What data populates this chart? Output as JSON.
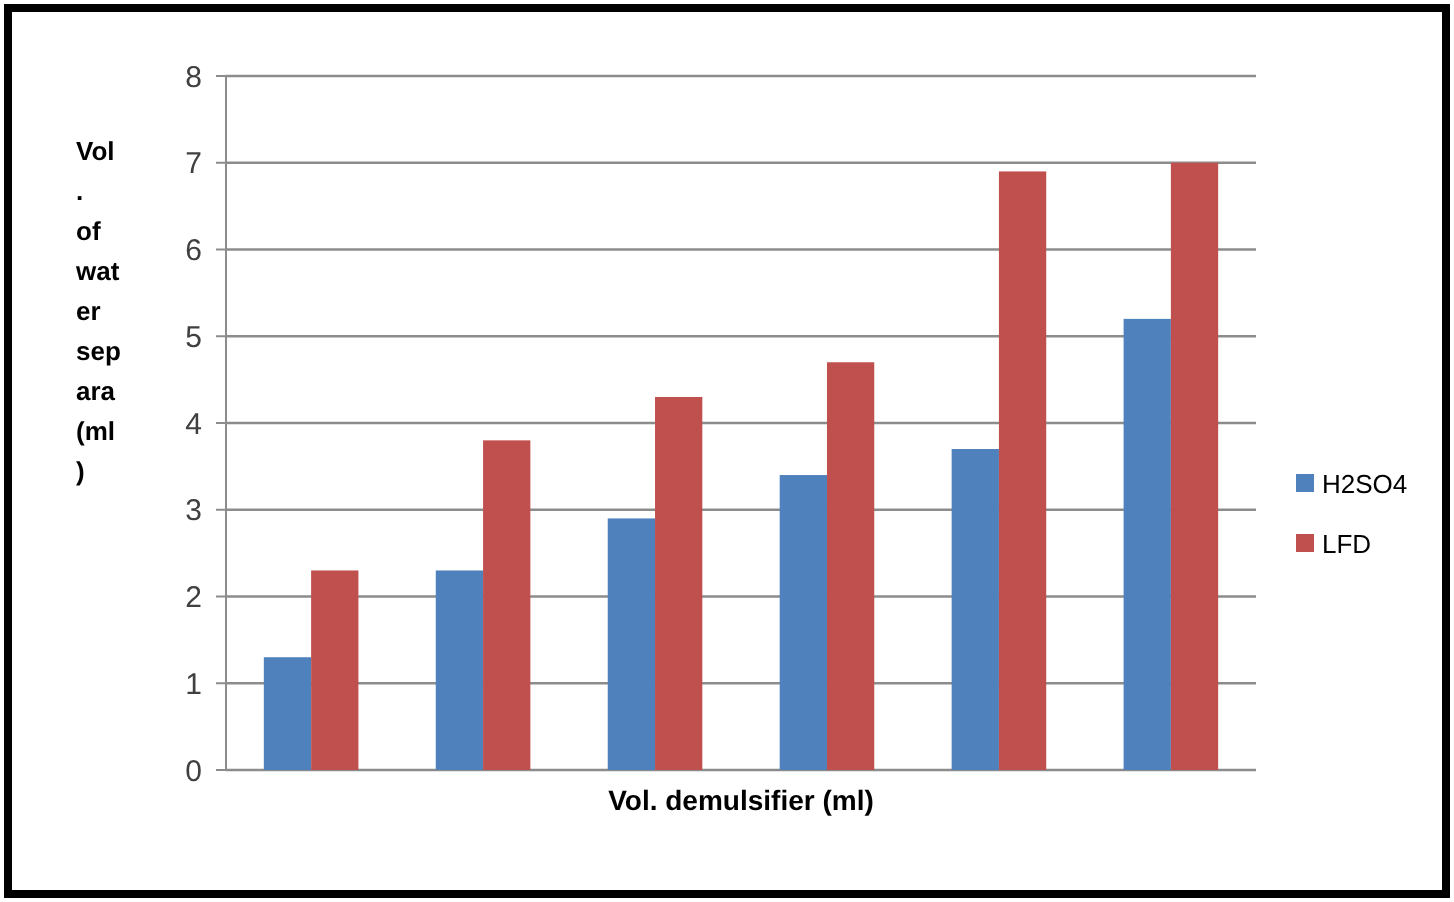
{
  "chart_data": {
    "type": "bar",
    "xlabel": "Vol. demulsifier (ml)",
    "ylabel": "Vol. of water separa (ml)",
    "categories": [
      null,
      null,
      null,
      null,
      null,
      null
    ],
    "series": [
      {
        "name": "H2SO4",
        "color": "#4f81bd",
        "values": [
          1.3,
          2.3,
          2.9,
          3.4,
          3.7,
          5.2
        ]
      },
      {
        "name": "LFD",
        "color": "#c0504d",
        "values": [
          2.3,
          3.8,
          4.3,
          4.7,
          6.9,
          7.0
        ]
      }
    ],
    "ylim": [
      0,
      8
    ],
    "yticks": [
      0,
      1,
      2,
      3,
      4,
      5,
      6,
      7,
      8
    ],
    "grid": "y",
    "legend": "right"
  }
}
